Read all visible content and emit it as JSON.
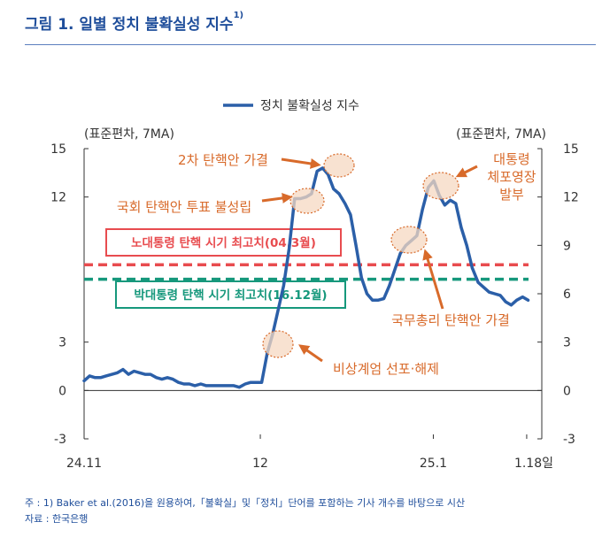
{
  "title": "그림 1. 일별 정치 불확실성 지수",
  "title_sup": "1)",
  "chart_data": {
    "type": "line",
    "legend": {
      "label": "정치 불확실성 지수",
      "position": "top-center"
    },
    "left_unit": "(표준편차, 7MA)",
    "right_unit": "(표준편차, 7MA)",
    "ylim": [
      -3,
      15
    ],
    "yticks": [
      15,
      12,
      3,
      0,
      -3
    ],
    "yticks_right": [
      15,
      12,
      9,
      6,
      3,
      0,
      -3
    ],
    "xlim": [
      0,
      100
    ],
    "xticks": [
      {
        "x": 0,
        "label": "24.11"
      },
      {
        "x": 38.5,
        "label": "12"
      },
      {
        "x": 76.3,
        "label": "25.1"
      },
      {
        "x": 96.7,
        "label": "1.18일"
      }
    ],
    "series": [
      {
        "name": "정치 불확실성 지수",
        "color": "#2b5fa8",
        "points": [
          [
            0,
            0.6
          ],
          [
            1.2,
            0.9
          ],
          [
            2.4,
            0.8
          ],
          [
            3.6,
            0.8
          ],
          [
            4.8,
            0.9
          ],
          [
            6.1,
            1.0
          ],
          [
            7.3,
            1.1
          ],
          [
            8.5,
            1.3
          ],
          [
            9.7,
            1.0
          ],
          [
            10.9,
            1.2
          ],
          [
            12.1,
            1.1
          ],
          [
            13.3,
            1.0
          ],
          [
            14.5,
            1.0
          ],
          [
            15.8,
            0.8
          ],
          [
            17.0,
            0.7
          ],
          [
            18.2,
            0.8
          ],
          [
            19.4,
            0.7
          ],
          [
            20.6,
            0.5
          ],
          [
            21.8,
            0.4
          ],
          [
            23.0,
            0.4
          ],
          [
            24.2,
            0.3
          ],
          [
            25.5,
            0.4
          ],
          [
            26.7,
            0.3
          ],
          [
            27.9,
            0.3
          ],
          [
            29.1,
            0.3
          ],
          [
            30.3,
            0.3
          ],
          [
            31.5,
            0.3
          ],
          [
            32.7,
            0.3
          ],
          [
            33.9,
            0.2
          ],
          [
            35.2,
            0.4
          ],
          [
            36.4,
            0.5
          ],
          [
            37.6,
            0.5
          ],
          [
            38.8,
            0.5
          ],
          [
            40.0,
            2.3
          ],
          [
            41.2,
            3.5
          ],
          [
            42.4,
            5.0
          ],
          [
            43.6,
            6.5
          ],
          [
            44.8,
            8.8
          ],
          [
            46.0,
            11.9
          ],
          [
            47.3,
            11.9
          ],
          [
            48.5,
            12.0
          ],
          [
            49.7,
            12.2
          ],
          [
            50.9,
            13.6
          ],
          [
            52.1,
            13.8
          ],
          [
            53.3,
            13.4
          ],
          [
            54.5,
            12.5
          ],
          [
            55.7,
            12.2
          ],
          [
            57.0,
            11.6
          ],
          [
            58.2,
            10.9
          ],
          [
            59.4,
            9.0
          ],
          [
            60.6,
            7.0
          ],
          [
            61.8,
            6.0
          ],
          [
            63.0,
            5.6
          ],
          [
            64.2,
            5.6
          ],
          [
            65.5,
            5.7
          ],
          [
            66.7,
            6.5
          ],
          [
            67.9,
            7.5
          ],
          [
            69.1,
            8.5
          ],
          [
            70.3,
            9.0
          ],
          [
            71.5,
            9.3
          ],
          [
            72.7,
            9.6
          ],
          [
            73.9,
            11.2
          ],
          [
            75.2,
            12.6
          ],
          [
            76.4,
            13.0
          ],
          [
            77.6,
            12.1
          ],
          [
            78.8,
            11.5
          ],
          [
            80.0,
            11.8
          ],
          [
            81.2,
            11.6
          ],
          [
            82.4,
            10.1
          ],
          [
            83.6,
            9.0
          ],
          [
            84.8,
            7.6
          ],
          [
            86.1,
            6.7
          ],
          [
            87.3,
            6.4
          ],
          [
            88.5,
            6.1
          ],
          [
            89.7,
            6.0
          ],
          [
            90.9,
            5.9
          ],
          [
            92.1,
            5.5
          ],
          [
            93.3,
            5.3
          ],
          [
            94.5,
            5.6
          ],
          [
            95.8,
            5.8
          ],
          [
            97.0,
            5.6
          ]
        ]
      }
    ],
    "reference_lines": [
      {
        "label": "노대통령 탄핵 시기 최고치(04.3월)",
        "value": 7.8,
        "color": "#e84c4f"
      },
      {
        "label": "박대통령 탄핵 시기 최고치(16.12월)",
        "value": 6.9,
        "color": "#16987c"
      }
    ],
    "annotations": [
      {
        "text": "2차 탄핵안 가결",
        "x": 52.0,
        "y": 13.8
      },
      {
        "text": "국회 탄핵안 투표 불성립",
        "x": 46.0,
        "y": 11.9
      },
      {
        "text": "대통령",
        "x": 76.3,
        "y": 12.9
      },
      {
        "text": "체포영장",
        "x": 76.3,
        "y": 12.9
      },
      {
        "text": "발부",
        "x": 76.3,
        "y": 12.9
      },
      {
        "text": "국무총리 탄핵안 가결",
        "x": 70.9,
        "y": 9.2
      },
      {
        "text": "비상계엄 선포·해제",
        "x": 41.2,
        "y": 3.0
      }
    ]
  },
  "notes": {
    "line1": "주 : 1) Baker et al.(2016)을 원용하여,「불확실」및「정치」단어를 포함하는 기사 개수를 바탕으로 시산",
    "line2": "자료 : 한국은행"
  }
}
